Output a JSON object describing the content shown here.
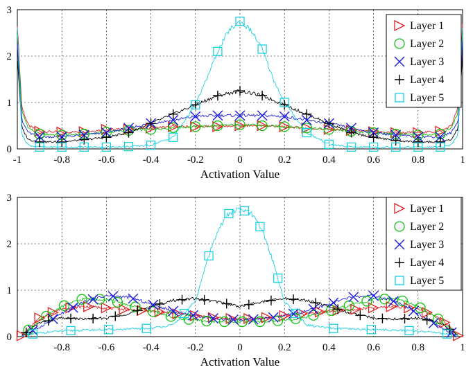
{
  "chart_data": [
    {
      "type": "line",
      "title": "",
      "xlabel": "Activation Value",
      "ylabel": "",
      "xlim": [
        -1,
        1
      ],
      "ylim": [
        0,
        3
      ],
      "xticks": [
        "-1",
        "-0.8",
        "-0.6",
        "-0.4",
        "-0.2",
        "0",
        "0.2",
        "0.4",
        "0.6",
        "0.8",
        "1"
      ],
      "yticks": [
        "0",
        "1",
        "2",
        "3"
      ],
      "grid": true,
      "legend_position": "top-right",
      "marker_x": [
        -0.9,
        -0.8,
        -0.7,
        -0.6,
        -0.5,
        -0.4,
        -0.3,
        -0.2,
        -0.1,
        0,
        0.1,
        0.2,
        0.3,
        0.4,
        0.5,
        0.6,
        0.7,
        0.8,
        0.9
      ],
      "series": [
        {
          "name": "Layer 1",
          "color": "#e02020",
          "marker": "triangle-right",
          "x": [
            -1,
            -0.98,
            -0.95,
            -0.9,
            -0.8,
            -0.7,
            -0.6,
            -0.5,
            -0.4,
            -0.3,
            -0.2,
            -0.1,
            0,
            0.1,
            0.2,
            0.3,
            0.4,
            0.5,
            0.6,
            0.7,
            0.8,
            0.9,
            0.95,
            0.98,
            1
          ],
          "y": [
            2.7,
            0.9,
            0.5,
            0.38,
            0.36,
            0.37,
            0.42,
            0.42,
            0.45,
            0.48,
            0.48,
            0.48,
            0.5,
            0.5,
            0.48,
            0.45,
            0.42,
            0.4,
            0.37,
            0.35,
            0.35,
            0.38,
            0.5,
            0.9,
            2.7
          ]
        },
        {
          "name": "Layer 2",
          "color": "#10c010",
          "marker": "circle",
          "x": [
            -1,
            -0.98,
            -0.95,
            -0.9,
            -0.8,
            -0.7,
            -0.6,
            -0.5,
            -0.4,
            -0.3,
            -0.2,
            -0.1,
            0,
            0.1,
            0.2,
            0.3,
            0.4,
            0.5,
            0.6,
            0.7,
            0.8,
            0.9,
            0.95,
            0.98,
            1
          ],
          "y": [
            2.5,
            0.8,
            0.45,
            0.32,
            0.3,
            0.32,
            0.36,
            0.4,
            0.42,
            0.46,
            0.48,
            0.5,
            0.52,
            0.5,
            0.48,
            0.45,
            0.42,
            0.38,
            0.35,
            0.32,
            0.3,
            0.32,
            0.45,
            0.8,
            2.5
          ]
        },
        {
          "name": "Layer 3",
          "color": "#1a1ae0",
          "marker": "x",
          "x": [
            -1,
            -0.98,
            -0.95,
            -0.9,
            -0.8,
            -0.7,
            -0.6,
            -0.5,
            -0.4,
            -0.3,
            -0.2,
            -0.1,
            0,
            0.1,
            0.2,
            0.3,
            0.4,
            0.5,
            0.6,
            0.7,
            0.8,
            0.9,
            0.95,
            0.98,
            1
          ],
          "y": [
            2.3,
            0.6,
            0.35,
            0.26,
            0.26,
            0.3,
            0.35,
            0.45,
            0.55,
            0.62,
            0.7,
            0.72,
            0.72,
            0.72,
            0.7,
            0.62,
            0.55,
            0.45,
            0.35,
            0.3,
            0.26,
            0.26,
            0.35,
            0.6,
            2.3
          ]
        },
        {
          "name": "Layer 4",
          "color": "#000000",
          "marker": "plus",
          "x": [
            -1,
            -0.98,
            -0.95,
            -0.9,
            -0.8,
            -0.7,
            -0.6,
            -0.5,
            -0.4,
            -0.3,
            -0.2,
            -0.1,
            0,
            0.1,
            0.2,
            0.3,
            0.4,
            0.5,
            0.6,
            0.7,
            0.8,
            0.9,
            0.95,
            0.98,
            1
          ],
          "y": [
            2.0,
            0.45,
            0.2,
            0.15,
            0.15,
            0.2,
            0.25,
            0.35,
            0.55,
            0.75,
            0.95,
            1.15,
            1.25,
            1.15,
            0.95,
            0.75,
            0.55,
            0.35,
            0.25,
            0.18,
            0.15,
            0.15,
            0.2,
            0.45,
            2.0
          ]
        },
        {
          "name": "Layer 5",
          "color": "#18d0e0",
          "marker": "square",
          "x": [
            -1,
            -0.98,
            -0.95,
            -0.9,
            -0.8,
            -0.7,
            -0.6,
            -0.5,
            -0.4,
            -0.3,
            -0.2,
            -0.15,
            -0.1,
            -0.05,
            0,
            0.05,
            0.1,
            0.15,
            0.2,
            0.3,
            0.4,
            0.5,
            0.6,
            0.7,
            0.8,
            0.9,
            0.95,
            0.98,
            1
          ],
          "y": [
            2.65,
            0.3,
            0.08,
            0.04,
            0.04,
            0.04,
            0.04,
            0.05,
            0.08,
            0.25,
            0.95,
            1.5,
            2.1,
            2.55,
            2.75,
            2.55,
            2.15,
            1.5,
            1.0,
            0.35,
            0.1,
            0.04,
            0.04,
            0.04,
            0.04,
            0.04,
            0.08,
            0.3,
            2.65
          ]
        }
      ]
    },
    {
      "type": "line",
      "title": "",
      "xlabel": "Activation Value",
      "ylabel": "",
      "xlim": [
        -1,
        1
      ],
      "ylim": [
        0,
        3
      ],
      "xticks": [
        "-0.8",
        "-0.6",
        "-0.4",
        "-0.2",
        "0",
        "0.2",
        "0.4",
        "0.6",
        "0.8",
        "1"
      ],
      "yticks": [
        "0",
        "1",
        "2",
        "3"
      ],
      "grid": true,
      "legend_position": "top-right",
      "series": [
        {
          "name": "Layer 1",
          "color": "#e02020",
          "marker": "triangle-right",
          "x": [
            -0.98,
            -0.9,
            -0.8,
            -0.7,
            -0.6,
            -0.5,
            -0.4,
            -0.3,
            -0.2,
            -0.1,
            0,
            0.1,
            0.2,
            0.3,
            0.4,
            0.5,
            0.6,
            0.7,
            0.8,
            0.9,
            0.98
          ],
          "y": [
            0.02,
            0.4,
            0.6,
            0.65,
            0.62,
            0.58,
            0.55,
            0.5,
            0.45,
            0.4,
            0.38,
            0.4,
            0.45,
            0.5,
            0.55,
            0.58,
            0.62,
            0.65,
            0.6,
            0.4,
            0.02
          ],
          "marker_x": [
            -0.98,
            -0.9,
            -0.84,
            -0.76,
            -0.68,
            -0.6,
            -0.52,
            -0.44,
            -0.36,
            -0.28,
            -0.2,
            -0.12,
            -0.04,
            0.04,
            0.12,
            0.2,
            0.28,
            0.36,
            0.44,
            0.52,
            0.6,
            0.68,
            0.76,
            0.84,
            0.92,
            0.98
          ]
        },
        {
          "name": "Layer 2",
          "color": "#10c010",
          "marker": "circle",
          "x": [
            -0.98,
            -0.9,
            -0.8,
            -0.7,
            -0.6,
            -0.5,
            -0.4,
            -0.3,
            -0.2,
            -0.1,
            0,
            0.1,
            0.2,
            0.3,
            0.4,
            0.5,
            0.6,
            0.7,
            0.8,
            0.9,
            0.98
          ],
          "y": [
            0.02,
            0.35,
            0.65,
            0.82,
            0.8,
            0.68,
            0.55,
            0.42,
            0.35,
            0.32,
            0.32,
            0.32,
            0.35,
            0.42,
            0.55,
            0.68,
            0.8,
            0.82,
            0.65,
            0.35,
            0.02
          ],
          "marker_x": [
            -0.95,
            -0.87,
            -0.79,
            -0.71,
            -0.63,
            -0.55,
            -0.47,
            -0.39,
            -0.31,
            -0.23,
            -0.15,
            -0.07,
            0.01,
            0.09,
            0.17,
            0.25,
            0.33,
            0.41,
            0.49,
            0.57,
            0.65,
            0.73,
            0.81,
            0.89
          ]
        },
        {
          "name": "Layer 3",
          "color": "#1a1ae0",
          "marker": "x",
          "x": [
            -0.98,
            -0.9,
            -0.8,
            -0.7,
            -0.6,
            -0.5,
            -0.4,
            -0.3,
            -0.2,
            -0.1,
            0,
            0.1,
            0.2,
            0.3,
            0.4,
            0.5,
            0.6,
            0.7,
            0.8,
            0.9,
            0.98
          ],
          "y": [
            0.02,
            0.2,
            0.5,
            0.75,
            0.88,
            0.85,
            0.7,
            0.55,
            0.45,
            0.38,
            0.36,
            0.38,
            0.45,
            0.55,
            0.7,
            0.85,
            0.88,
            0.75,
            0.5,
            0.2,
            0.02
          ],
          "marker_x": [
            -0.93,
            -0.84,
            -0.75,
            -0.66,
            -0.57,
            -0.48,
            -0.39,
            -0.3,
            -0.21,
            -0.12,
            -0.03,
            0.06,
            0.15,
            0.24,
            0.33,
            0.42,
            0.51,
            0.6,
            0.69,
            0.78,
            0.87,
            0.95
          ]
        },
        {
          "name": "Layer 4",
          "color": "#000000",
          "marker": "plus",
          "x": [
            -0.98,
            -0.9,
            -0.8,
            -0.7,
            -0.6,
            -0.5,
            -0.4,
            -0.3,
            -0.2,
            -0.1,
            0,
            0.1,
            0.2,
            0.3,
            0.4,
            0.5,
            0.6,
            0.7,
            0.8,
            0.9,
            0.98
          ],
          "y": [
            0.02,
            0.3,
            0.4,
            0.38,
            0.4,
            0.5,
            0.65,
            0.78,
            0.82,
            0.75,
            0.65,
            0.75,
            0.82,
            0.78,
            0.65,
            0.5,
            0.4,
            0.38,
            0.4,
            0.3,
            0.02
          ],
          "marker_x": [
            -0.96,
            -0.86,
            -0.76,
            -0.66,
            -0.56,
            -0.46,
            -0.36,
            -0.26,
            -0.16,
            -0.06,
            0.04,
            0.14,
            0.24,
            0.34,
            0.44,
            0.54,
            0.64,
            0.74,
            0.84,
            0.94
          ]
        },
        {
          "name": "Layer 5",
          "color": "#18d0e0",
          "marker": "square",
          "x": [
            -0.98,
            -0.9,
            -0.8,
            -0.7,
            -0.6,
            -0.5,
            -0.4,
            -0.3,
            -0.2,
            -0.15,
            -0.1,
            -0.05,
            0,
            0.05,
            0.1,
            0.15,
            0.2,
            0.3,
            0.4,
            0.5,
            0.6,
            0.7,
            0.8,
            0.9,
            0.98
          ],
          "y": [
            0.02,
            0.08,
            0.12,
            0.14,
            0.15,
            0.16,
            0.18,
            0.25,
            0.75,
            1.6,
            2.3,
            2.65,
            2.75,
            2.65,
            2.3,
            1.6,
            0.75,
            0.25,
            0.18,
            0.16,
            0.15,
            0.14,
            0.12,
            0.08,
            0.02
          ],
          "marker_x": [
            -0.93,
            -0.76,
            -0.59,
            -0.42,
            -0.25,
            -0.14,
            -0.05,
            0.02,
            0.09,
            0.17,
            0.25,
            0.42,
            0.59,
            0.76,
            0.93
          ]
        }
      ]
    }
  ]
}
